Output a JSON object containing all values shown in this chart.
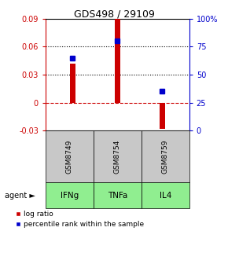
{
  "title": "GDS498 / 29109",
  "samples": [
    "GSM8749",
    "GSM8754",
    "GSM8759"
  ],
  "agents": [
    "IFNg",
    "TNFa",
    "IL4"
  ],
  "log_ratios": [
    0.042,
    0.09,
    -0.028
  ],
  "percentile_ranks": [
    65,
    80,
    35
  ],
  "ylim_left": [
    -0.03,
    0.09
  ],
  "ylim_right": [
    0,
    100
  ],
  "yticks_left": [
    -0.03,
    0,
    0.03,
    0.06,
    0.09
  ],
  "ytick_labels_left": [
    "-0.03",
    "0",
    "0.03",
    "0.06",
    "0.09"
  ],
  "yticks_right": [
    0,
    25,
    50,
    75,
    100
  ],
  "ytick_labels_right": [
    "0",
    "25",
    "50",
    "75",
    "100%"
  ],
  "bar_color": "#cc0000",
  "dot_color": "#0000cc",
  "sample_box_color": "#c8c8c8",
  "agent_box_color": "#90ee90",
  "zero_line_color": "#cc0000",
  "grid_color": "#000000",
  "bar_width": 0.12,
  "agent_label": "agent ►"
}
